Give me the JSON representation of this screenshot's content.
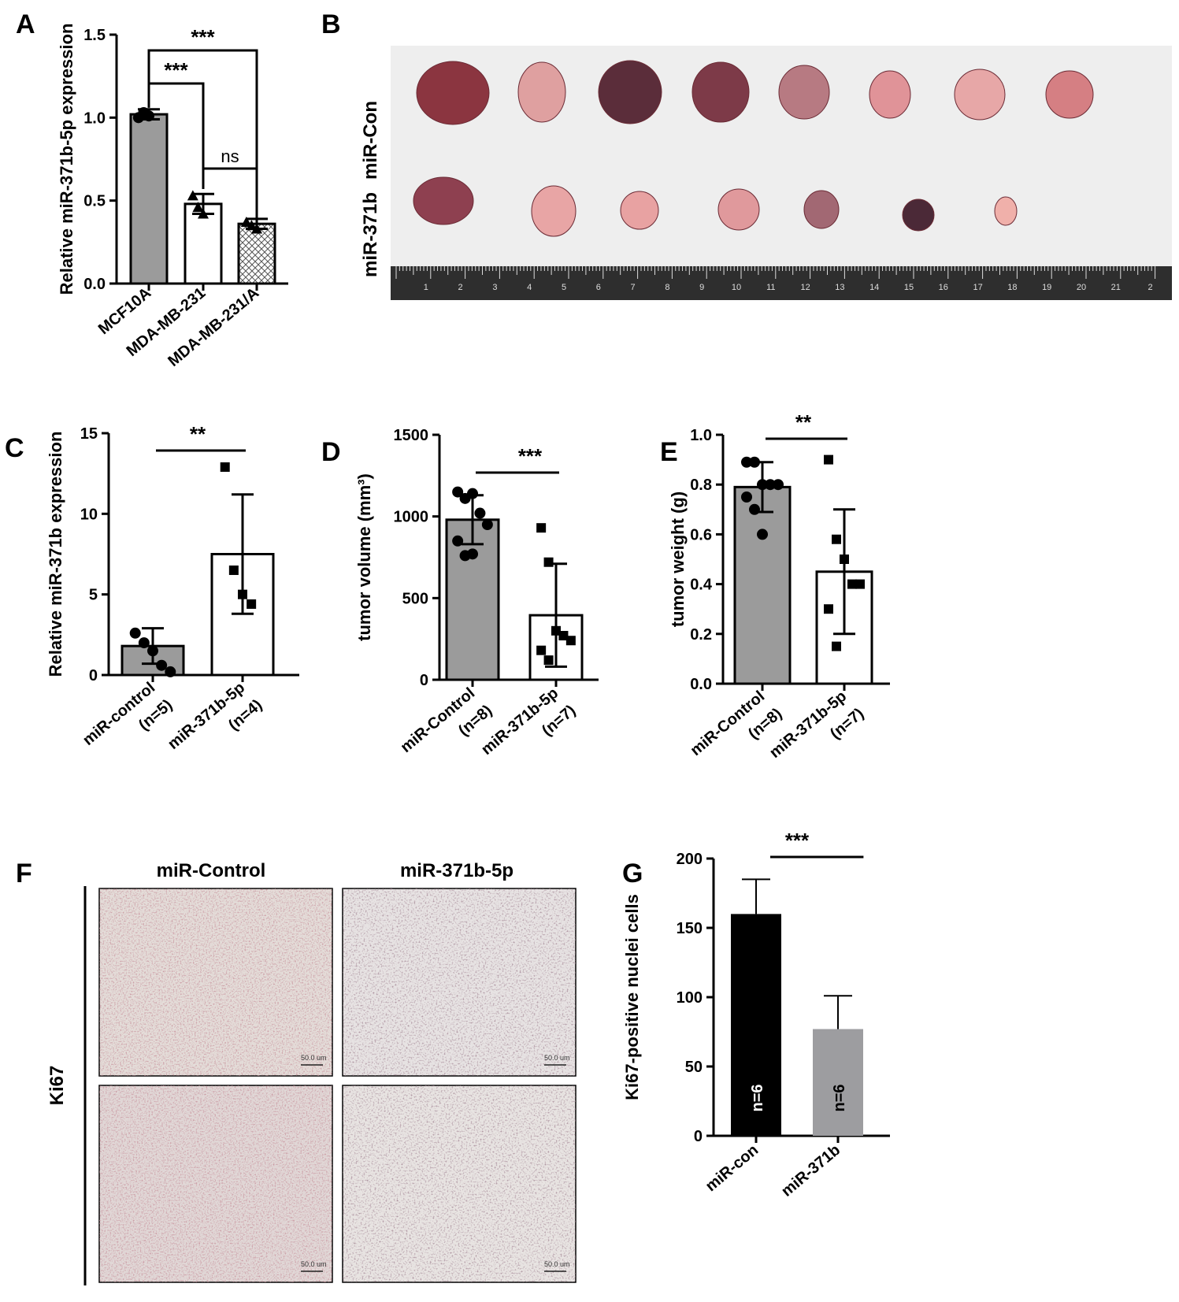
{
  "panel_labels": [
    "A",
    "B",
    "C",
    "D",
    "E",
    "F",
    "G"
  ],
  "colors": {
    "gray_bar": "#9b9b9b",
    "white_bar": "#ffffff",
    "black_bar": "#000000",
    "g_gray_bar": "#9d9da0"
  },
  "panel_b": {
    "row_labels": [
      "miR-Con",
      "miR-371b"
    ],
    "ruler_numbers": [
      "1",
      "2",
      "3",
      "4",
      "5",
      "6",
      "7",
      "8",
      "9",
      "10",
      "11",
      "12",
      "13",
      "14",
      "15",
      "16",
      "17",
      "18",
      "19",
      "20",
      "21",
      "2"
    ]
  },
  "panel_f": {
    "column_labels": [
      "miR-Control",
      "miR-371b-5p"
    ],
    "row_label": "Ki67",
    "scale_bar_text": "50.0 um"
  },
  "chart_data": [
    {
      "panel": "A",
      "type": "bar",
      "ylabel": "Relative miR-371b-5p expression",
      "ylim": [
        0,
        1.5
      ],
      "yticks": [
        "0.0",
        "0.5",
        "1.0",
        "1.5"
      ],
      "categories": [
        "MCF10A",
        "MDA-MB-231",
        "MDA-MB-231/A"
      ],
      "values": [
        1.02,
        0.48,
        0.36
      ],
      "errors": [
        0.03,
        0.06,
        0.03
      ],
      "fills": [
        "gray",
        "white",
        "hatched"
      ],
      "points": [
        [
          1.0,
          1.03,
          1.01
        ],
        [
          0.53,
          0.46,
          0.42
        ],
        [
          0.37,
          0.35,
          0.33
        ]
      ],
      "annotations": [
        {
          "from": 0,
          "to": 1,
          "text": "***"
        },
        {
          "from": 0,
          "to": 2,
          "text": "***"
        },
        {
          "from": 1,
          "to": 2,
          "text": "ns"
        }
      ]
    },
    {
      "panel": "C",
      "type": "bar",
      "ylabel": "Relative miR-371b expression",
      "ylim": [
        0,
        15
      ],
      "yticks": [
        "0",
        "5",
        "10",
        "15"
      ],
      "categories": [
        [
          "miR-control",
          "(n=5)"
        ],
        [
          "miR-371b-5p",
          "(n=4)"
        ]
      ],
      "values": [
        1.8,
        7.5
      ],
      "errors": [
        1.1,
        3.7
      ],
      "fills": [
        "gray",
        "white"
      ],
      "points": [
        [
          2.6,
          2.0,
          1.5,
          0.6,
          0.2
        ],
        [
          12.9,
          6.5,
          5.0,
          4.4
        ]
      ],
      "annotations": [
        {
          "from": 0,
          "to": 1,
          "text": "**"
        }
      ]
    },
    {
      "panel": "D",
      "type": "bar",
      "ylabel": "tumor volume (mm³)",
      "ylim": [
        0,
        1500
      ],
      "yticks": [
        "0",
        "500",
        "1000",
        "1500"
      ],
      "categories": [
        [
          "miR-Control",
          "(n=8)"
        ],
        [
          "miR-371b-5p",
          "(n=7)"
        ]
      ],
      "values": [
        980,
        395
      ],
      "errors": [
        150,
        315
      ],
      "fills": [
        "gray",
        "white"
      ],
      "points": [
        [
          1150,
          1110,
          1140,
          1020,
          950,
          850,
          760,
          770
        ],
        [
          930,
          720,
          300,
          270,
          240,
          180,
          120
        ]
      ],
      "annotations": [
        {
          "from": 0,
          "to": 1,
          "text": "***"
        }
      ]
    },
    {
      "panel": "E",
      "type": "bar",
      "ylabel": "tumor weight (g)",
      "ylim": [
        0,
        1.0
      ],
      "yticks": [
        "0.0",
        "0.2",
        "0.4",
        "0.6",
        "0.8",
        "1.0"
      ],
      "categories": [
        [
          "miR-Control",
          "(n=8)"
        ],
        [
          "miR-371b-5p",
          "(n=7)"
        ]
      ],
      "values": [
        0.79,
        0.45
      ],
      "errors": [
        0.1,
        0.25
      ],
      "fills": [
        "gray",
        "white"
      ],
      "points": [
        [
          0.89,
          0.89,
          0.8,
          0.8,
          0.8,
          0.75,
          0.7,
          0.6
        ],
        [
          0.9,
          0.58,
          0.5,
          0.4,
          0.4,
          0.3,
          0.15
        ]
      ],
      "annotations": [
        {
          "from": 0,
          "to": 1,
          "text": "**"
        }
      ]
    },
    {
      "panel": "G",
      "type": "bar",
      "ylabel": "Ki67-positive nuclei cells",
      "ylim": [
        0,
        200
      ],
      "yticks": [
        "0",
        "50",
        "100",
        "150",
        "200"
      ],
      "categories": [
        "miR-con",
        "miR-371b"
      ],
      "values": [
        160,
        77
      ],
      "errors": [
        25,
        24
      ],
      "fills": [
        "black",
        "gray"
      ],
      "bar_text": [
        "n=6",
        "n=6"
      ],
      "annotations": [
        {
          "from": 0,
          "to": 1,
          "text": "***"
        }
      ]
    }
  ]
}
